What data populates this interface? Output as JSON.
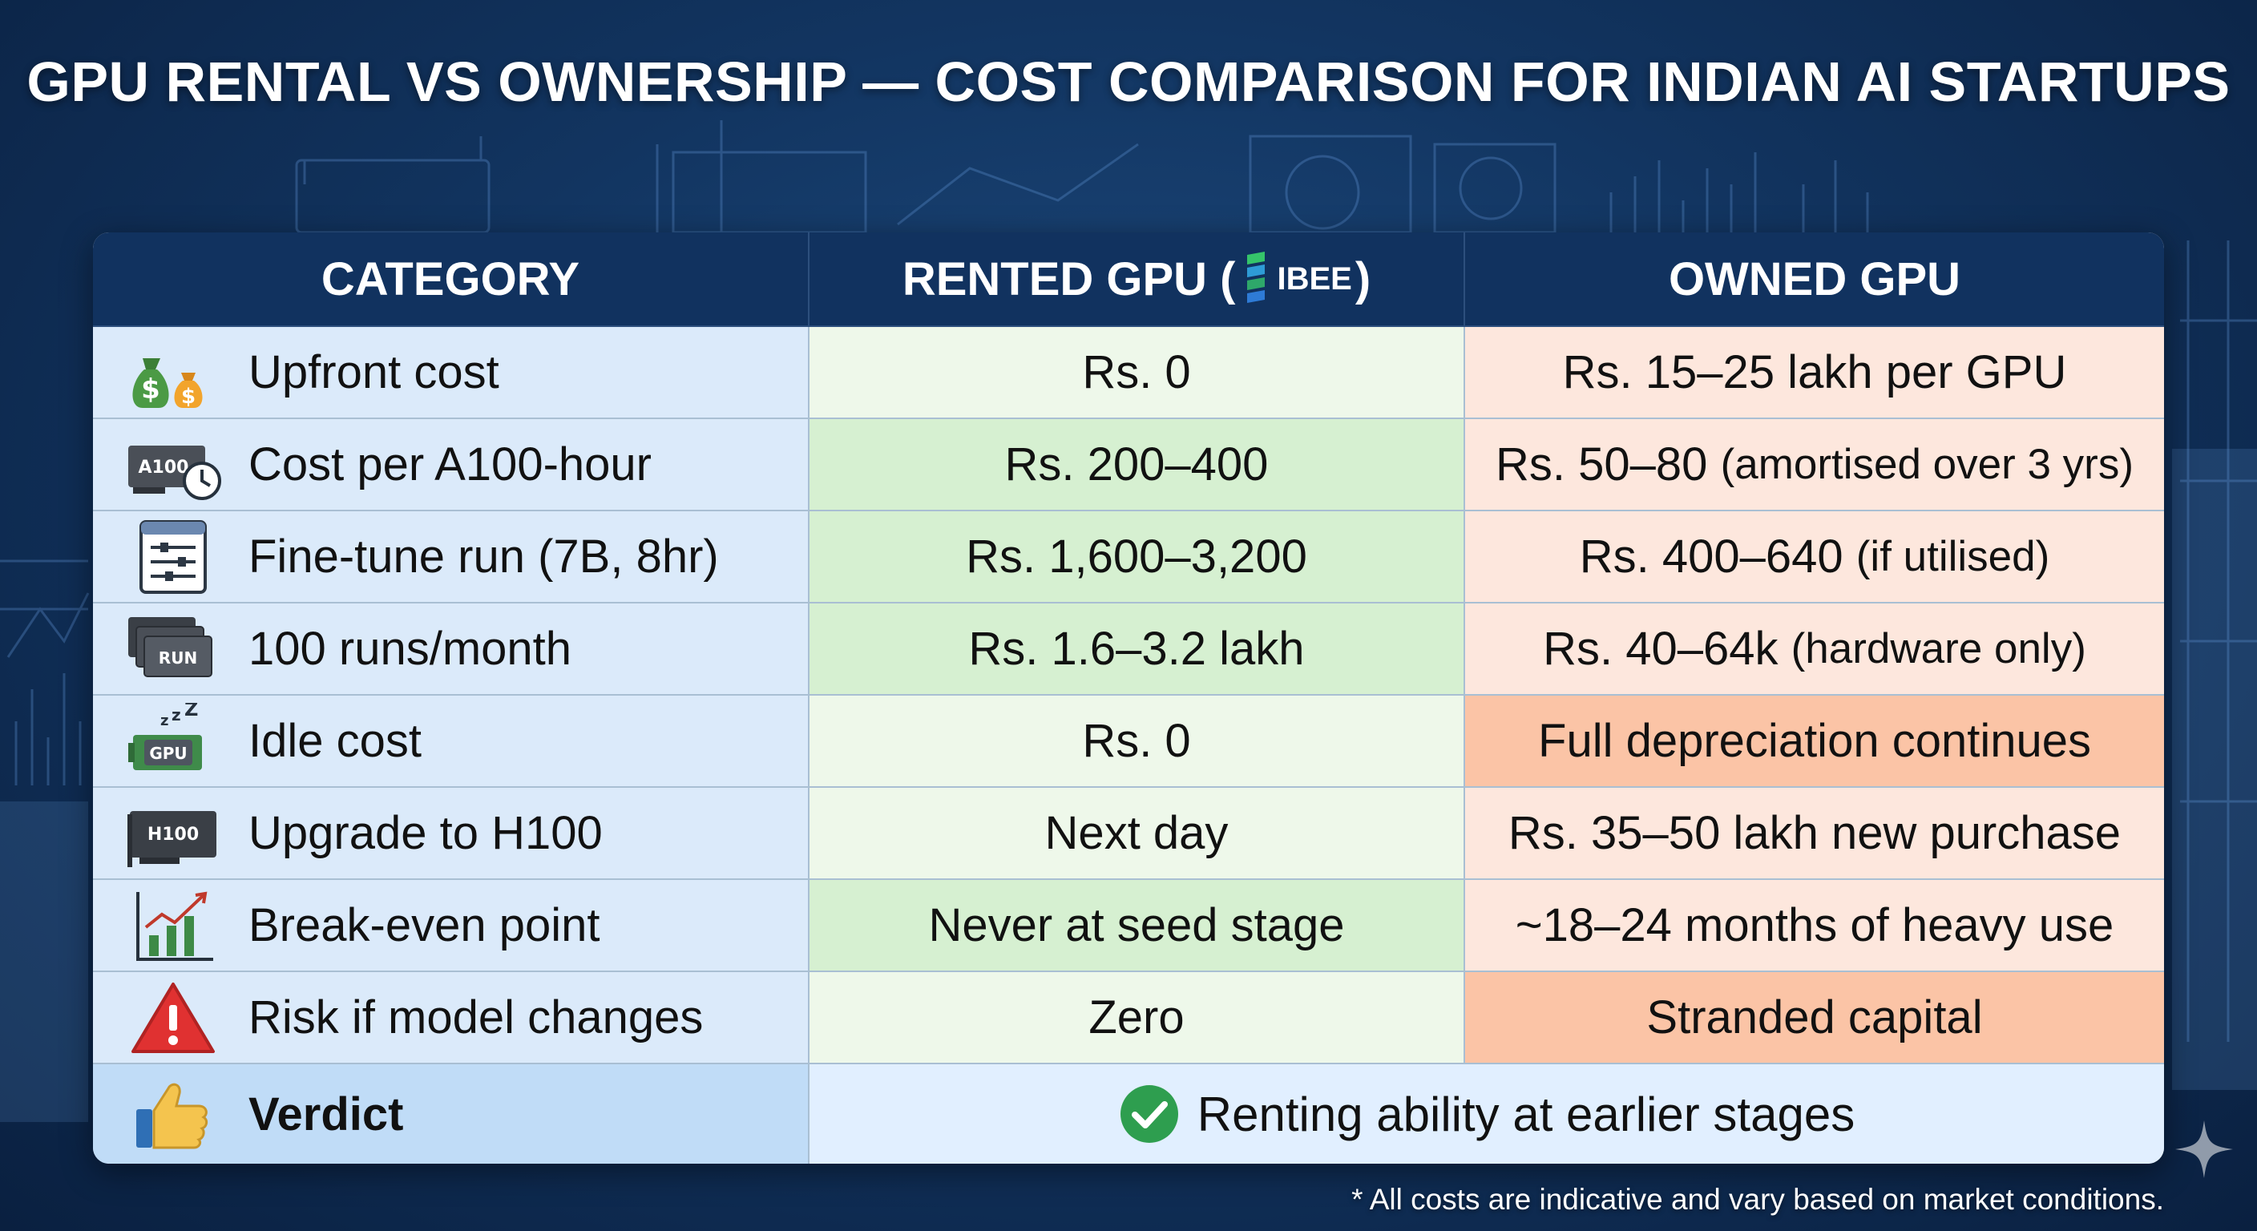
{
  "title": "GPU RENTAL VS OWNERSHIP — COST COMPARISON FOR INDIAN AI STARTUPS",
  "headers": {
    "category": "CATEGORY",
    "rented_prefix": "RENTED GPU (",
    "rented_logo": "IBEE",
    "rented_suffix": ")",
    "owned": "OWNED GPU"
  },
  "rows": [
    {
      "icon": "money-bags-icon",
      "category": "Upfront cost",
      "rented": "Rs. 0",
      "owned": "Rs. 15–25 lakh per GPU",
      "owned_note": ""
    },
    {
      "icon": "gpu-clock-icon",
      "icon_label": "A100",
      "category": "Cost per A100-hour",
      "rented": "Rs. 200–400",
      "owned": "Rs. 50–80",
      "owned_note": "(amortised over 3 yrs)"
    },
    {
      "icon": "settings-sliders-icon",
      "category": "Fine-tune run (7B, 8hr)",
      "rented": "Rs. 1,600–3,200",
      "owned": "Rs. 400–640",
      "owned_note": "(if utilised)"
    },
    {
      "icon": "stacked-runs-icon",
      "icon_label": "RUN",
      "category": "100 runs/month",
      "rented": "Rs. 1.6–3.2 lakh",
      "owned": "Rs. 40–64k",
      "owned_note": "(hardware only)"
    },
    {
      "icon": "sleeping-gpu-icon",
      "icon_label": "GPU",
      "category": "Idle cost",
      "rented": "Rs. 0",
      "owned": "Full depreciation continues",
      "owned_note": ""
    },
    {
      "icon": "gpu-card-icon",
      "icon_label": "H100",
      "category": "Upgrade to H100",
      "rented": "Next day",
      "owned": "Rs. 35–50 lakh new purchase",
      "owned_note": ""
    },
    {
      "icon": "growth-chart-icon",
      "category": "Break-even point",
      "rented": "Never at seed stage",
      "owned": "~18–24 months of heavy use",
      "owned_note": ""
    },
    {
      "icon": "warning-icon",
      "category": "Risk if model changes",
      "rented": "Zero",
      "owned": "Stranded capital",
      "owned_note": ""
    }
  ],
  "verdict": {
    "icon": "thumbs-up-icon",
    "label": "Verdict",
    "text": "Renting ability at earlier stages"
  },
  "footnote": "* All costs are indicative and vary based on market conditions.",
  "colors": {
    "header_bg": "#11325f",
    "category_bg": "#dbeafa",
    "rented_light": "#eef8ea",
    "rented_medium": "#d6f0d1",
    "owned_light": "#fde7dd",
    "owned_strong": "#fbc4a6",
    "verdict_check": "#2e9e4f"
  }
}
